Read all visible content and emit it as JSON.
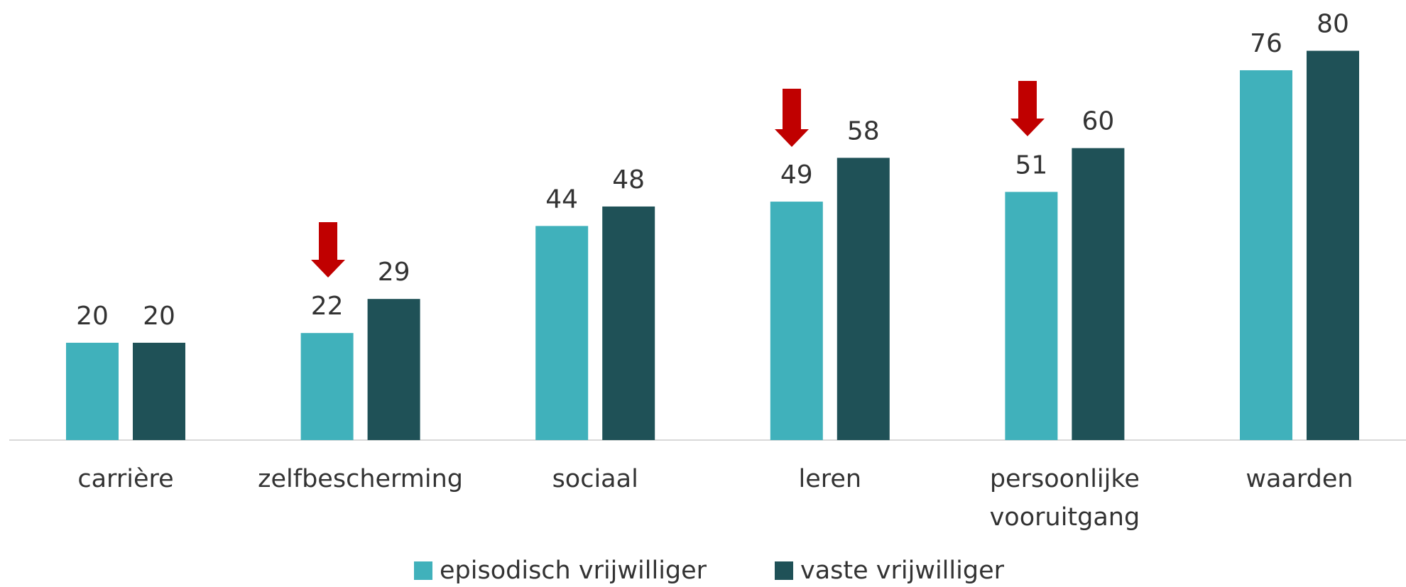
{
  "chart_data": {
    "type": "bar",
    "categories": [
      "carrière",
      "zelfbescherming",
      "sociaal",
      "leren",
      "persoonlijke vooruitgang",
      "waarden"
    ],
    "series": [
      {
        "name": "episodisch vrijwilliger",
        "color": "#40b1bb",
        "values": [
          20,
          22,
          44,
          49,
          51,
          76
        ]
      },
      {
        "name": "vaste vrijwilliger",
        "color": "#1f5157",
        "values": [
          20,
          29,
          48,
          58,
          60,
          80
        ]
      }
    ],
    "ylim": [
      0,
      90
    ],
    "grid": false,
    "legend": "bottom"
  }
}
